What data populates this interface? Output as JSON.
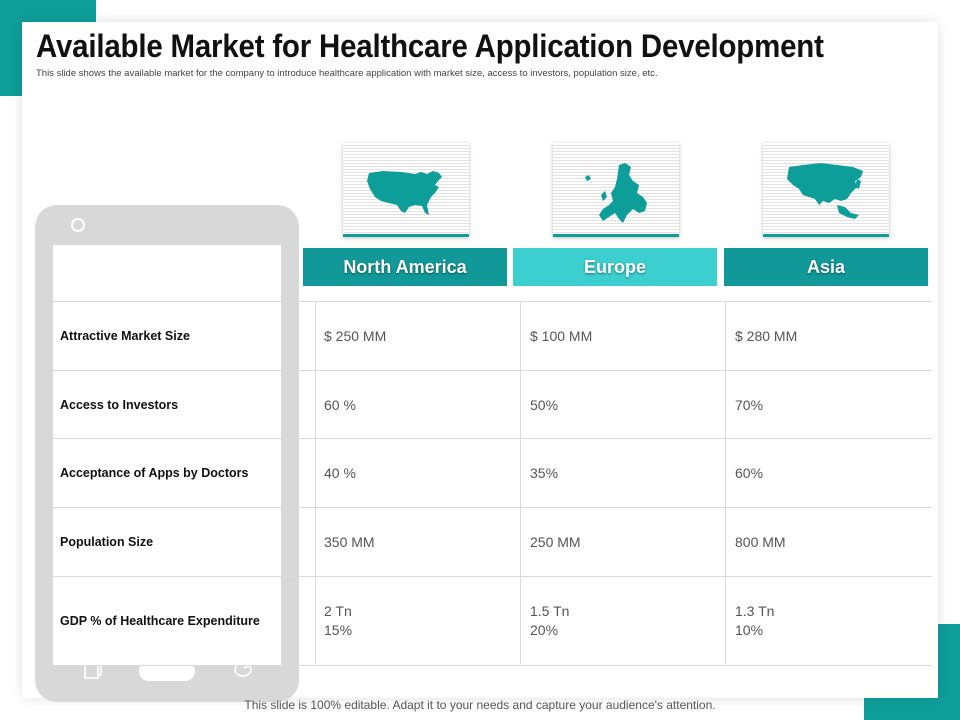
{
  "title": "Available Market for Healthcare Application Development",
  "subtitle": "This slide shows the available market for the company to introduce healthcare application with market size, access to investors, population size, etc.",
  "regions": [
    {
      "name": "North America",
      "map_icon": "north-america-map-icon"
    },
    {
      "name": "Europe",
      "map_icon": "europe-map-icon"
    },
    {
      "name": "Asia",
      "map_icon": "asia-map-icon"
    }
  ],
  "rows": [
    {
      "label": "Attractive Market Size",
      "values": [
        "$ 250 MM",
        "$ 100 MM",
        "$ 280 MM"
      ]
    },
    {
      "label": "Access to Investors",
      "values": [
        "60 %",
        "50%",
        "70%"
      ]
    },
    {
      "label": "Acceptance of Apps by Doctors",
      "values": [
        "40 %",
        "35%",
        "60%"
      ]
    },
    {
      "label": "Population Size",
      "values": [
        "350 MM",
        "250 MM",
        "800 MM"
      ]
    },
    {
      "label": "GDP % of Healthcare Expenditure",
      "values": [
        [
          "2 Tn",
          "15%"
        ],
        [
          "1.5 Tn",
          "20%"
        ],
        [
          "1.3 Tn",
          "10%"
        ]
      ]
    }
  ],
  "footer": "This slide is 100% editable. Adapt it to your needs and capture your audience's attention.",
  "colors": {
    "accent": "#0e9e9a",
    "header_dark": "#11999a",
    "header_light": "#3ccfcf",
    "map": "#0e9e9a"
  }
}
